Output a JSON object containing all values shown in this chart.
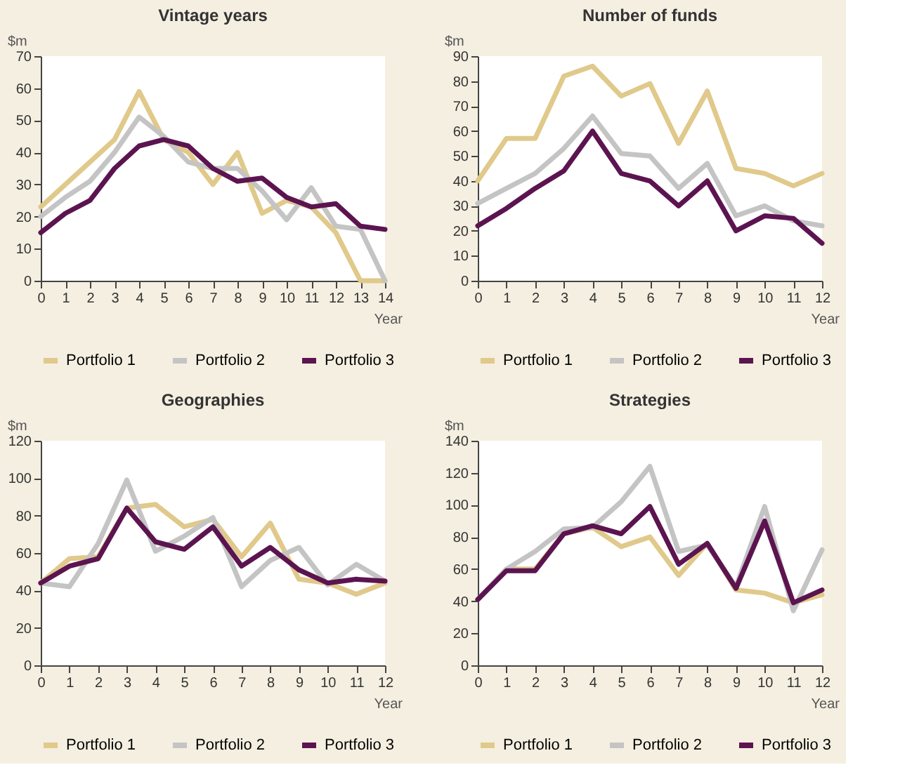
{
  "chart_data": [
    {
      "type": "line",
      "title": "Vintage years",
      "ylabel": "$m",
      "xlabel": "Year",
      "x": [
        0,
        1,
        2,
        3,
        4,
        5,
        6,
        7,
        8,
        9,
        10,
        11,
        12,
        13,
        14
      ],
      "xlim": [
        0,
        14
      ],
      "xticks": [
        0,
        1,
        2,
        3,
        4,
        5,
        6,
        7,
        8,
        9,
        10,
        11,
        12,
        13,
        14
      ],
      "ylim": [
        0,
        70
      ],
      "yticks": [
        0,
        10,
        20,
        30,
        40,
        50,
        60,
        70
      ],
      "grid": false,
      "legend": "bottom",
      "series": [
        {
          "name": "Portfolio 1",
          "color": "#e0c98a",
          "values": [
            23,
            30,
            37,
            44,
            59,
            44,
            40,
            30,
            40,
            21,
            25,
            23,
            15,
            0,
            0
          ]
        },
        {
          "name": "Portfolio 2",
          "color": "#c4c4c4",
          "values": [
            20,
            26,
            31,
            40,
            51,
            45,
            37,
            35,
            35,
            28,
            19,
            29,
            17,
            16,
            0
          ]
        },
        {
          "name": "Portfolio 3",
          "color": "#5c1450",
          "values": [
            15,
            21,
            25,
            35,
            42,
            44,
            42,
            35,
            31,
            32,
            26,
            23,
            24,
            17,
            16
          ]
        }
      ]
    },
    {
      "type": "line",
      "title": "Number of funds",
      "ylabel": "$m",
      "xlabel": "Year",
      "x": [
        0,
        1,
        2,
        3,
        4,
        5,
        6,
        7,
        8,
        9,
        10,
        11,
        12
      ],
      "xlim": [
        0,
        12
      ],
      "xticks": [
        0,
        1,
        2,
        3,
        4,
        5,
        6,
        7,
        8,
        9,
        10,
        11,
        12
      ],
      "ylim": [
        0,
        90
      ],
      "yticks": [
        0,
        10,
        20,
        30,
        40,
        50,
        60,
        70,
        80,
        90
      ],
      "grid": false,
      "legend": "bottom",
      "series": [
        {
          "name": "Portfolio 1",
          "color": "#e0c98a",
          "values": [
            40,
            57,
            57,
            82,
            86,
            74,
            79,
            55,
            76,
            45,
            43,
            38,
            43
          ]
        },
        {
          "name": "Portfolio 2",
          "color": "#c4c4c4",
          "values": [
            31,
            37,
            43,
            53,
            66,
            51,
            50,
            37,
            47,
            26,
            30,
            24,
            22
          ]
        },
        {
          "name": "Portfolio 3",
          "color": "#5c1450",
          "values": [
            22,
            29,
            37,
            44,
            60,
            43,
            40,
            30,
            40,
            20,
            26,
            25,
            15
          ]
        }
      ]
    },
    {
      "type": "line",
      "title": "Geographies",
      "ylabel": "$m",
      "xlabel": "Year",
      "x": [
        0,
        1,
        2,
        3,
        4,
        5,
        6,
        7,
        8,
        9,
        10,
        11,
        12
      ],
      "xlim": [
        0,
        12
      ],
      "xticks": [
        0,
        1,
        2,
        3,
        4,
        5,
        6,
        7,
        8,
        9,
        10,
        11,
        12
      ],
      "ylim": [
        0,
        120
      ],
      "yticks": [
        0,
        20,
        40,
        60,
        80,
        100,
        120
      ],
      "grid": false,
      "legend": "bottom",
      "series": [
        {
          "name": "Portfolio 1",
          "color": "#e0c98a",
          "values": [
            44,
            57,
            58,
            84,
            86,
            74,
            78,
            58,
            76,
            46,
            44,
            38,
            44
          ]
        },
        {
          "name": "Portfolio 2",
          "color": "#c4c4c4",
          "values": [
            44,
            42,
            65,
            99,
            61,
            69,
            79,
            42,
            56,
            63,
            43,
            54,
            45
          ]
        },
        {
          "name": "Portfolio 3",
          "color": "#5c1450",
          "values": [
            44,
            53,
            57,
            84,
            66,
            62,
            74,
            53,
            63,
            51,
            44,
            46,
            45
          ]
        }
      ]
    },
    {
      "type": "line",
      "title": "Strategies",
      "ylabel": "$m",
      "xlabel": "Year",
      "x": [
        0,
        1,
        2,
        3,
        4,
        5,
        6,
        7,
        8,
        9,
        10,
        11,
        12
      ],
      "xlim": [
        0,
        12
      ],
      "xticks": [
        0,
        1,
        2,
        3,
        4,
        5,
        6,
        7,
        8,
        9,
        10,
        11,
        12
      ],
      "ylim": [
        0,
        140
      ],
      "yticks": [
        0,
        20,
        40,
        60,
        80,
        100,
        120,
        140
      ],
      "grid": false,
      "legend": "bottom",
      "series": [
        {
          "name": "Portfolio 1",
          "color": "#e0c98a",
          "values": [
            41,
            60,
            60,
            82,
            86,
            74,
            80,
            56,
            76,
            47,
            45,
            39,
            44
          ]
        },
        {
          "name": "Portfolio 2",
          "color": "#c4c4c4",
          "values": [
            41,
            60,
            71,
            85,
            86,
            102,
            124,
            71,
            75,
            49,
            99,
            34,
            72
          ]
        },
        {
          "name": "Portfolio 3",
          "color": "#5c1450",
          "values": [
            41,
            59,
            59,
            82,
            87,
            82,
            99,
            63,
            76,
            48,
            90,
            39,
            47
          ]
        }
      ]
    }
  ]
}
